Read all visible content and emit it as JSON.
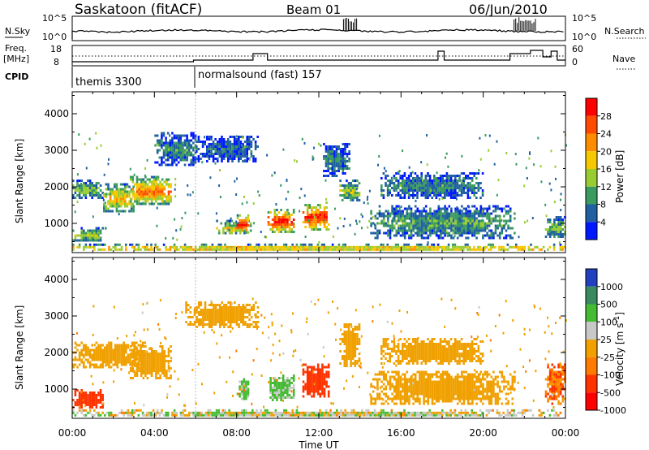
{
  "header": {
    "station": "Saskatoon (fitACF)",
    "beam": "Beam 01",
    "date": "06/Jun/2010"
  },
  "summary_panels": {
    "nsky_label": "N.Sky",
    "nsky_scale_top": "10^5",
    "nsky_scale_bottom": "10^0",
    "nsearch_label": "N.Search",
    "freq_label": "Freq.",
    "freq_unit": "[MHz]",
    "freq_scale_top": "18",
    "freq_scale_bottom": "8",
    "nave_label": "Nave",
    "nave_scale_top": "60",
    "nave_scale_bottom": "0",
    "cpid_label": "CPID",
    "cpid_modes": [
      {
        "name": "themis 3300",
        "start_hour": 0
      },
      {
        "name": "normalsound (fast) 157",
        "start_hour": 6.0
      }
    ]
  },
  "power_colorbar": {
    "label": "Power [dB]",
    "ticks": [
      "28",
      "24",
      "20",
      "16",
      "12",
      "8",
      "4"
    ],
    "colors": [
      "#ff0000",
      "#ff4a00",
      "#ff8c00",
      "#f5c800",
      "#99cc33",
      "#3a9a60",
      "#2060a0",
      "#0018ff"
    ]
  },
  "velocity_colorbar": {
    "label": "Velocity [m s^-1]",
    "ticks": [
      "1000",
      "500",
      "100",
      "25",
      "-25",
      "-100",
      "-500",
      "-1000"
    ],
    "colors": [
      "#2040c0",
      "#3a8a60",
      "#44bb33",
      "#c8c8c8",
      "#f0a000",
      "#ff7a00",
      "#ff3300",
      "#ff0000"
    ]
  },
  "axes": {
    "xlabel": "Time UT",
    "xticks": [
      "00:00",
      "04:00",
      "08:00",
      "12:00",
      "16:00",
      "20:00",
      "00:00"
    ],
    "ylabel": "Slant Range [km]",
    "yticks": [
      "1000",
      "2000",
      "3000",
      "4000"
    ]
  },
  "chart_data": [
    {
      "type": "heatmap",
      "title": "Saskatoon (fitACF) Beam 01 06/Jun/2010",
      "xlabel": "Time UT",
      "ylabel": "Slant Range [km]",
      "xlim": [
        0,
        24
      ],
      "ylim": [
        200,
        4600
      ],
      "colorbar_label": "Power [dB]",
      "color_range": [
        0,
        32
      ],
      "regions": [
        {
          "t0": 0.0,
          "t1": 1.5,
          "r0": 500,
          "r1": 900,
          "value": 14
        },
        {
          "t0": 0.0,
          "t1": 1.5,
          "r0": 1700,
          "r1": 2200,
          "value": 12
        },
        {
          "t0": 1.5,
          "t1": 3.0,
          "r0": 1300,
          "r1": 2100,
          "value": 18
        },
        {
          "t0": 2.8,
          "t1": 4.8,
          "r0": 1500,
          "r1": 2300,
          "value": 22
        },
        {
          "t0": 4.0,
          "t1": 6.0,
          "r0": 2600,
          "r1": 3500,
          "value": 8
        },
        {
          "t0": 6.0,
          "t1": 9.0,
          "r0": 2700,
          "r1": 3400,
          "value": 6
        },
        {
          "t0": 7.0,
          "t1": 8.7,
          "r0": 700,
          "r1": 1100,
          "value": 16
        },
        {
          "t0": 8.0,
          "t1": 8.6,
          "r0": 750,
          "r1": 1250,
          "value": 28
        },
        {
          "t0": 9.5,
          "t1": 10.8,
          "r0": 750,
          "r1": 1400,
          "value": 26
        },
        {
          "t0": 11.2,
          "t1": 12.5,
          "r0": 800,
          "r1": 1600,
          "value": 26
        },
        {
          "t0": 12.2,
          "t1": 13.5,
          "r0": 2300,
          "r1": 3200,
          "value": 8
        },
        {
          "t0": 13.0,
          "t1": 14.0,
          "r0": 1600,
          "r1": 2200,
          "value": 14
        },
        {
          "t0": 14.5,
          "t1": 21.5,
          "r0": 600,
          "r1": 1500,
          "value": 10
        },
        {
          "t0": 15.0,
          "t1": 20.0,
          "r0": 1700,
          "r1": 2400,
          "value": 8
        },
        {
          "t0": 23.0,
          "t1": 24.0,
          "r0": 600,
          "r1": 1200,
          "value": 12
        },
        {
          "t0": 0.0,
          "t1": 24.0,
          "r0": 250,
          "r1": 450,
          "value": 20
        }
      ]
    },
    {
      "type": "heatmap",
      "title": "Saskatoon (fitACF) Beam 01 06/Jun/2010",
      "xlabel": "Time UT",
      "ylabel": "Slant Range [km]",
      "xlim": [
        0,
        24
      ],
      "ylim": [
        200,
        4600
      ],
      "colorbar_label": "Velocity [m s^-1]",
      "color_range": [
        -1000,
        1000
      ],
      "regions": [
        {
          "t0": 0.0,
          "t1": 1.5,
          "r0": 500,
          "r1": 1000,
          "value": -300
        },
        {
          "t0": 0.0,
          "t1": 3.5,
          "r0": 1600,
          "r1": 2300,
          "value": 0
        },
        {
          "t0": 2.8,
          "t1": 4.8,
          "r0": 1300,
          "r1": 2200,
          "value": 0
        },
        {
          "t0": 5.5,
          "t1": 9.0,
          "r0": 2700,
          "r1": 3400,
          "value": 0
        },
        {
          "t0": 8.0,
          "t1": 8.6,
          "r0": 750,
          "r1": 1300,
          "value": 150
        },
        {
          "t0": 9.5,
          "t1": 10.8,
          "r0": 700,
          "r1": 1400,
          "value": 150
        },
        {
          "t0": 11.2,
          "t1": 12.5,
          "r0": 800,
          "r1": 1700,
          "value": -200
        },
        {
          "t0": 13.0,
          "t1": 14.0,
          "r0": 1600,
          "r1": 2800,
          "value": 0
        },
        {
          "t0": 14.5,
          "t1": 21.5,
          "r0": 600,
          "r1": 1500,
          "value": 0
        },
        {
          "t0": 15.0,
          "t1": 20.0,
          "r0": 1700,
          "r1": 2400,
          "value": 0
        },
        {
          "t0": 23.0,
          "t1": 24.0,
          "r0": 600,
          "r1": 1700,
          "value": -80
        },
        {
          "t0": 0.0,
          "t1": 24.0,
          "r0": 250,
          "r1": 450,
          "value": 60
        }
      ]
    }
  ]
}
